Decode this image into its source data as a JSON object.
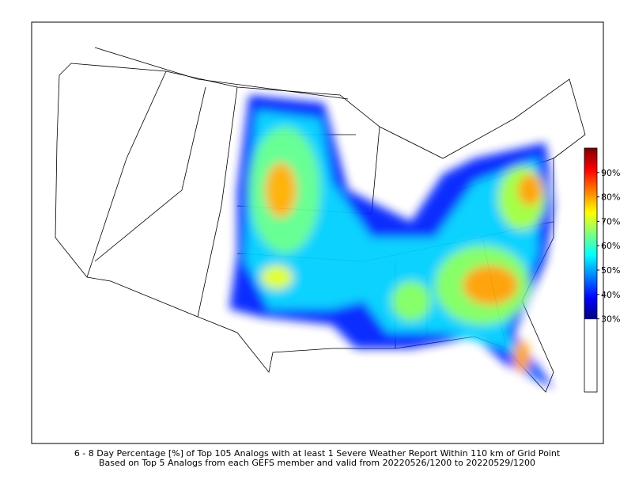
{
  "map": {
    "colormap": "jet",
    "colorbar": {
      "range": [
        0,
        100
      ],
      "threshold": 30,
      "ticks": [
        {
          "value": 30,
          "label": "30%"
        },
        {
          "value": 40,
          "label": "40%"
        },
        {
          "value": 50,
          "label": "50%"
        },
        {
          "value": 60,
          "label": "60%"
        },
        {
          "value": 70,
          "label": "70%"
        },
        {
          "value": 80,
          "label": "80%"
        },
        {
          "value": 90,
          "label": "90%"
        }
      ]
    }
  },
  "caption": {
    "lines": [
      "6 - 8 Day Percentage [%] of Top 105 Analogs with at least 1 Severe Weather Report Within 110 km of Grid Point",
      "Based on Top 5 Analogs from each GEFS member and valid from 20220526/1200 to 20220529/1200"
    ]
  }
}
